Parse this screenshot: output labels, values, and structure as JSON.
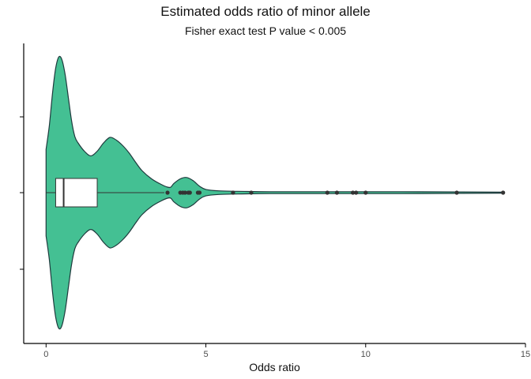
{
  "chart_data": {
    "type": "violin",
    "title": "Estimated odds ratio of minor allele",
    "subtitle": "Fisher exact test P value < 0.005",
    "xlabel": "Odds ratio",
    "ylabel": "",
    "xlim": [
      -0.7,
      15
    ],
    "x_ticks": [
      0,
      5,
      10,
      15
    ],
    "orientation": "horizontal",
    "grid": false,
    "colors": {
      "fill": "#44c093",
      "outline": "#1f3a3d",
      "point": "#333333",
      "axis": "#000000",
      "box_fill": "#ffffff"
    },
    "violin_density": [
      [
        0.0,
        0.94
      ],
      [
        0.1,
        1.45
      ],
      [
        0.2,
        2.15
      ],
      [
        0.3,
        2.7
      ],
      [
        0.4,
        2.95
      ],
      [
        0.5,
        2.88
      ],
      [
        0.6,
        2.55
      ],
      [
        0.7,
        2.05
      ],
      [
        0.8,
        1.55
      ],
      [
        0.9,
        1.22
      ],
      [
        1.0,
        1.08
      ],
      [
        1.2,
        0.9
      ],
      [
        1.4,
        0.8
      ],
      [
        1.6,
        0.9
      ],
      [
        1.8,
        1.08
      ],
      [
        2.0,
        1.2
      ],
      [
        2.2,
        1.14
      ],
      [
        2.4,
        1.02
      ],
      [
        2.6,
        0.86
      ],
      [
        2.8,
        0.66
      ],
      [
        3.0,
        0.48
      ],
      [
        3.3,
        0.3
      ],
      [
        3.6,
        0.18
      ],
      [
        3.8,
        0.12
      ],
      [
        3.9,
        0.12
      ],
      [
        4.0,
        0.2
      ],
      [
        4.2,
        0.3
      ],
      [
        4.4,
        0.33
      ],
      [
        4.6,
        0.26
      ],
      [
        4.8,
        0.14
      ],
      [
        5.0,
        0.07
      ],
      [
        5.4,
        0.04
      ],
      [
        6.0,
        0.03
      ],
      [
        7.0,
        0.02
      ],
      [
        9.0,
        0.02
      ],
      [
        11.0,
        0.02
      ],
      [
        13.0,
        0.015
      ],
      [
        14.3,
        0.01
      ]
    ],
    "box": {
      "q1": 0.3,
      "median": 0.55,
      "q3": 1.6,
      "whisker_low": 0.0,
      "whisker_high": 3.7
    },
    "outliers": [
      3.8,
      4.2,
      4.28,
      4.35,
      4.45,
      4.5,
      4.75,
      4.8,
      5.85,
      6.42,
      8.8,
      9.1,
      9.6,
      9.7,
      10.0,
      12.85,
      14.3
    ]
  }
}
